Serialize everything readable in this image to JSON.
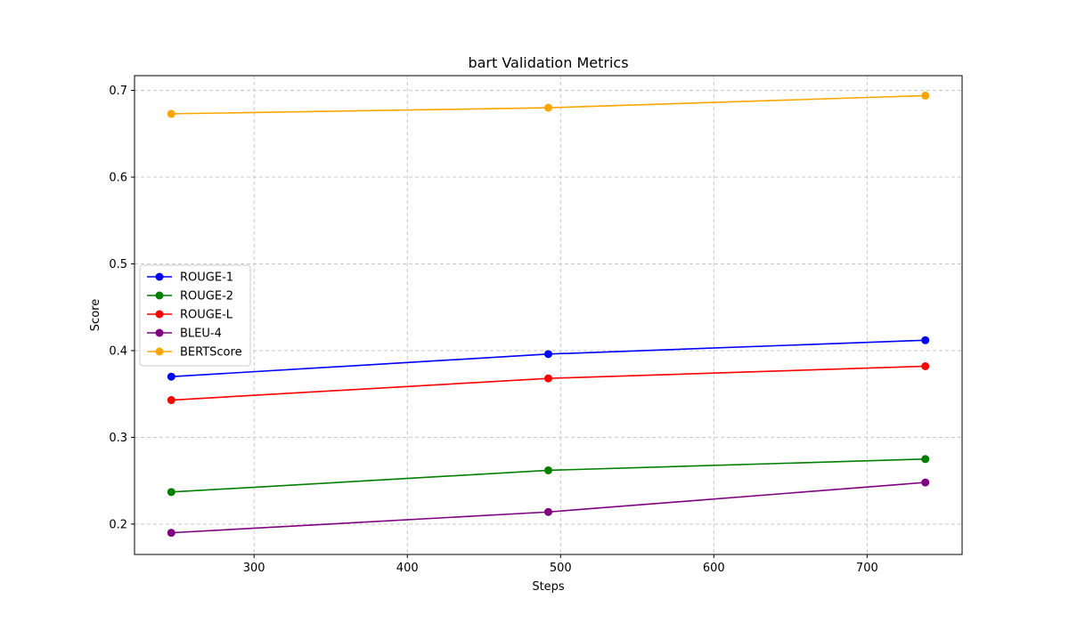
{
  "chart_data": {
    "type": "line",
    "title": "bart Validation Metrics",
    "xlabel": "Steps",
    "ylabel": "Score",
    "x": [
      246,
      492,
      738
    ],
    "xlim": [
      222,
      762
    ],
    "ylim": [
      0.165,
      0.717
    ],
    "xticks": [
      300,
      400,
      500,
      600,
      700
    ],
    "yticks": [
      0.2,
      0.3,
      0.4,
      0.5,
      0.6,
      0.7
    ],
    "xtick_labels": [
      "300",
      "400",
      "500",
      "600",
      "700"
    ],
    "ytick_labels": [
      "0.2",
      "0.3",
      "0.4",
      "0.5",
      "0.6",
      "0.7"
    ],
    "grid": true,
    "legend_position": "center-left",
    "series": [
      {
        "name": "ROUGE-1",
        "color": "#0000ff",
        "values": [
          0.37,
          0.396,
          0.412
        ]
      },
      {
        "name": "ROUGE-2",
        "color": "#008000",
        "values": [
          0.237,
          0.262,
          0.275
        ]
      },
      {
        "name": "ROUGE-L",
        "color": "#ff0000",
        "values": [
          0.343,
          0.368,
          0.382
        ]
      },
      {
        "name": "BLEU-4",
        "color": "#800080",
        "values": [
          0.19,
          0.214,
          0.248
        ]
      },
      {
        "name": "BERTScore",
        "color": "#ffa500",
        "values": [
          0.673,
          0.68,
          0.694
        ]
      }
    ]
  }
}
